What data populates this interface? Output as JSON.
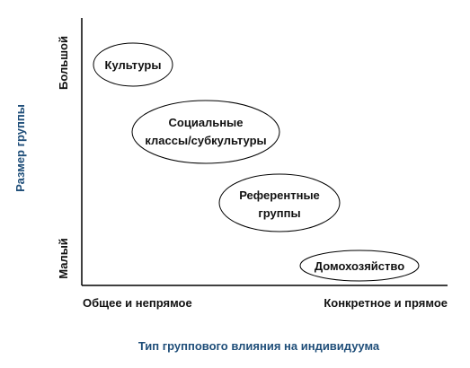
{
  "axes": {
    "y_title": "Размер группы",
    "y_top_label": "Большой",
    "y_bottom_label": "Малый",
    "x_left_label": "Общее и непрямое",
    "x_right_label": "Конкретное и прямое",
    "x_title": "Тип группового влияния на индивидуума",
    "title_color": "#1f4e79",
    "axis_color": "#000000"
  },
  "nodes": [
    {
      "id": "cultures",
      "lines": [
        "Культуры"
      ]
    },
    {
      "id": "social-classes",
      "lines": [
        "Социальные",
        "классы/субкультуры"
      ]
    },
    {
      "id": "reference-groups",
      "lines": [
        "Референтные",
        "группы"
      ]
    },
    {
      "id": "household",
      "lines": [
        "Домохозяйство"
      ]
    }
  ]
}
